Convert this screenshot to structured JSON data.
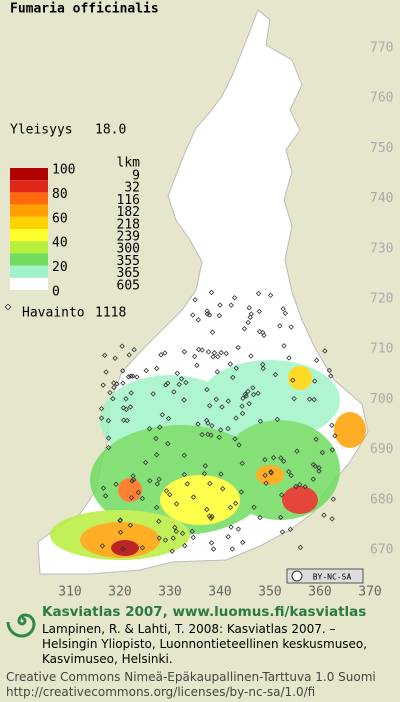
{
  "title": "Fumaria officinalis",
  "frequency": {
    "label": "Yleisyys",
    "value": "18.0"
  },
  "legend": {
    "percent_labels": [
      100,
      80,
      60,
      40,
      20,
      0
    ],
    "count_header": "lkm",
    "counts": [
      9,
      32,
      116,
      182,
      218,
      239,
      300,
      355,
      365,
      605
    ],
    "colors": [
      "#b00000",
      "#e02818",
      "#ff6a10",
      "#ffa000",
      "#ffd400",
      "#ffff30",
      "#b8ee3c",
      "#70dc60",
      "#a0f4c8",
      "#ffffff"
    ]
  },
  "observation": {
    "label": "Havainto",
    "count": 1118
  },
  "grid": {
    "y_labels": [
      770,
      760,
      750,
      740,
      730,
      720,
      710,
      700,
      690,
      680,
      670
    ],
    "x_labels": [
      310,
      320,
      330,
      340,
      350,
      360,
      370
    ]
  },
  "license_badge": "BY-NC-SA",
  "footer": {
    "heading": "Kasviatlas 2007, www.luomus.fi/kasviatlas",
    "citation": "Lampinen, R. & Lahti, T. 2008: Kasviatlas 2007. – Helsingin Yliopisto, Luonnontieteellinen keskusmuseo, Kasvimuseo, Helsinki.",
    "license": "Creative Commons Nimeä-Epäkaupallinen-Tarttuva 1.0 Suomi http://creativecommons.org/licenses/by-nc-sa/1.0/fi"
  }
}
